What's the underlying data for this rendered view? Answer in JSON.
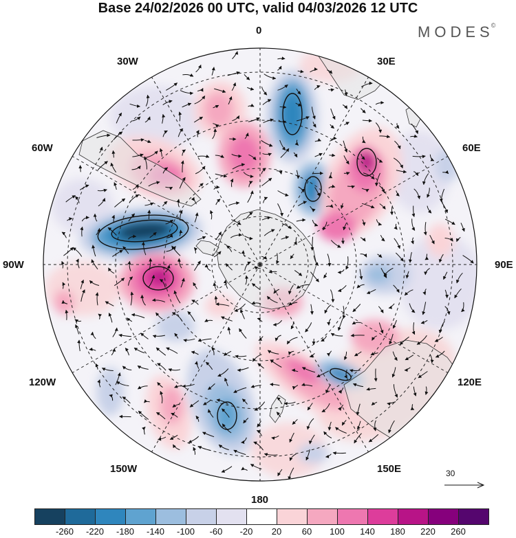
{
  "title": "Base 24/02/2026 00 UTC, valid 04/03/2026 12 UTC",
  "logo": {
    "text": "MODES",
    "mark": "©"
  },
  "longitude_labels": {
    "lon_0": "0",
    "lon_30e": "30E",
    "lon_60e": "60E",
    "lon_90e": "90E",
    "lon_120e": "120E",
    "lon_150e": "150E",
    "lon_180": "180",
    "lon_150w": "150W",
    "lon_120w": "120W",
    "lon_90w": "90W",
    "lon_60w": "60W",
    "lon_30w": "30W"
  },
  "reference_vector": {
    "value": "30"
  },
  "colorbar": {
    "ticks": [
      "-260",
      "-220",
      "-180",
      "-140",
      "-100",
      "-60",
      "-20",
      "20",
      "60",
      "100",
      "140",
      "180",
      "220",
      "260"
    ],
    "colors": [
      "#16415f",
      "#1f6a9a",
      "#2f86bd",
      "#5fa3d0",
      "#9cbedf",
      "#c8d1e8",
      "#e3e1f0",
      "#ffffff",
      "#fad4d8",
      "#f5a8c0",
      "#ee77b0",
      "#dd3d9b",
      "#b81487",
      "#86007c",
      "#55066e"
    ]
  },
  "anomaly_features": [
    {
      "kind": "negative",
      "value": -260,
      "color": "#16415f",
      "region": "west of Drake Passage"
    },
    {
      "kind": "positive",
      "value": 220,
      "color": "#b81487",
      "region": "South Pacific near 90W"
    },
    {
      "kind": "positive",
      "value": 180,
      "color": "#dd3d9b",
      "region": "South Indian Ocean near 60E"
    },
    {
      "kind": "negative",
      "value": -180,
      "color": "#2f86bd",
      "region": "South Atlantic near 10E"
    },
    {
      "kind": "negative",
      "value": -140,
      "color": "#5fa3d0",
      "region": "Ross Sea sector near 170W"
    }
  ]
}
